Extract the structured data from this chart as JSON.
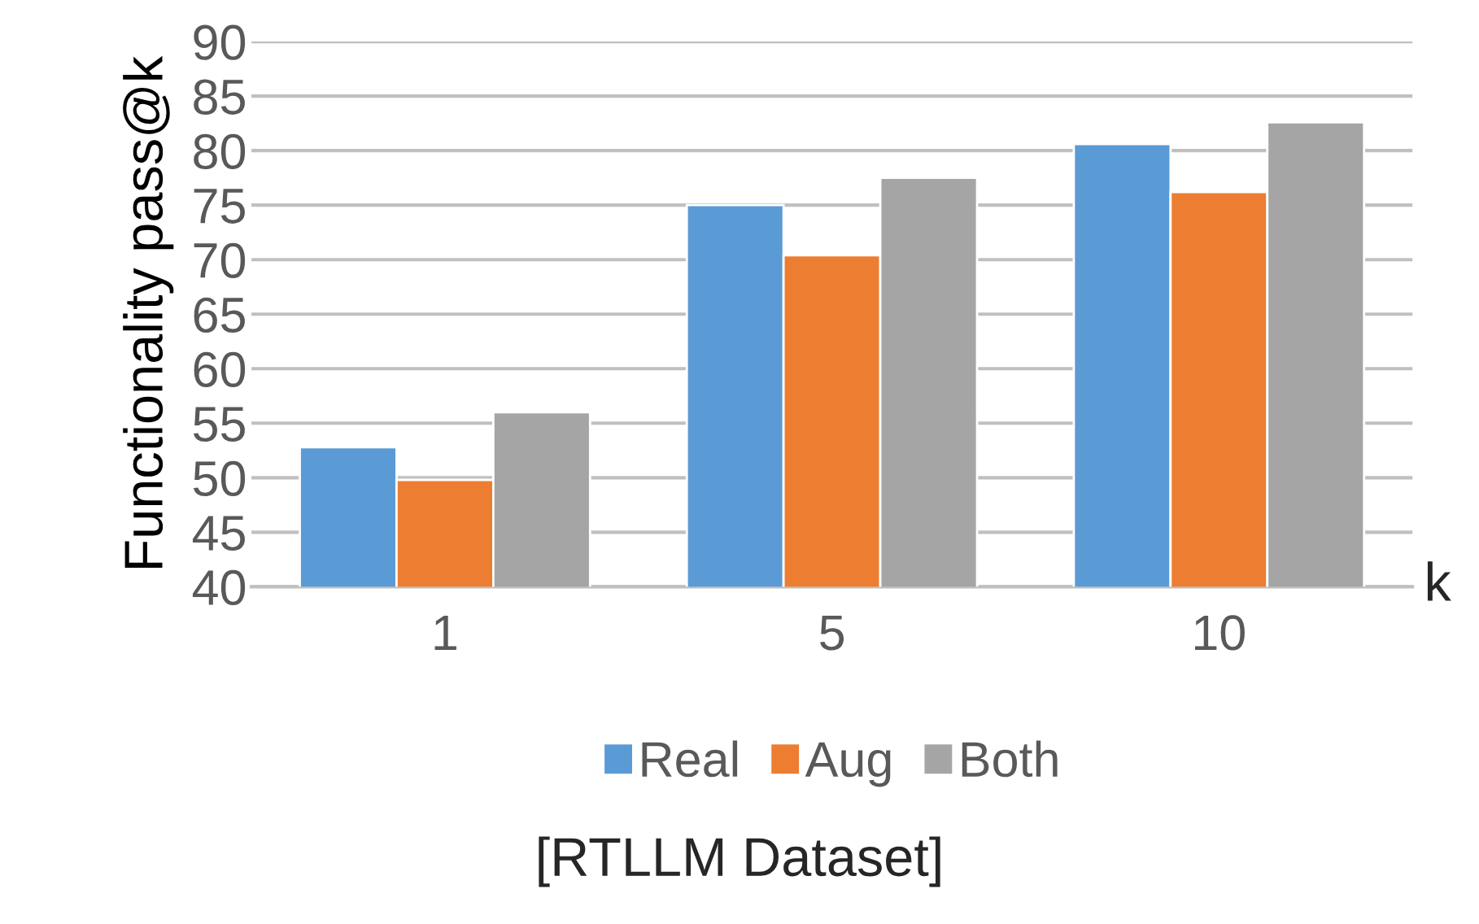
{
  "chart_data": {
    "type": "bar",
    "xlabel": "k",
    "ylabel": "Functionality pass@k",
    "categories": [
      "1",
      "5",
      "10"
    ],
    "series": [
      {
        "name": "Real",
        "color": "#5b9bd5",
        "values": [
          52.8,
          75.0,
          80.6
        ]
      },
      {
        "name": "Aug",
        "color": "#ed7d31",
        "values": [
          49.8,
          70.4,
          76.2
        ]
      },
      {
        "name": "Both",
        "color": "#a5a5a5",
        "values": [
          56.0,
          77.5,
          82.6
        ]
      }
    ],
    "ylim": [
      40,
      90
    ],
    "yticks": [
      40,
      45,
      50,
      55,
      60,
      65,
      70,
      75,
      80,
      85,
      90
    ],
    "grid": "y",
    "legend": "bottom",
    "annotations": [
      "[RTLLM Dataset]"
    ]
  }
}
